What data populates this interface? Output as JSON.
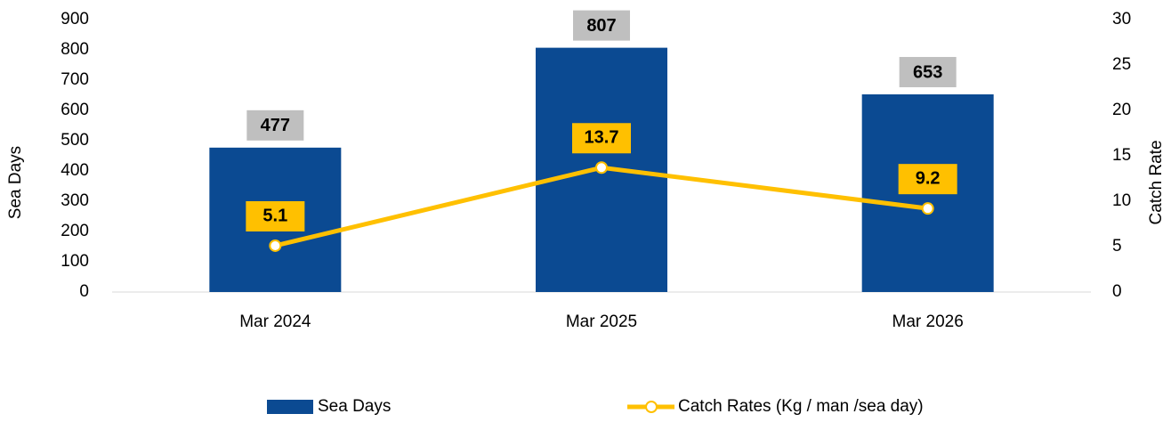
{
  "chart_data": {
    "type": "bar_line",
    "categories": [
      "Mar 2024",
      "Mar 2025",
      "Mar 2026"
    ],
    "series": [
      {
        "name": "Sea Days",
        "type": "bar",
        "color": "#0b4a92",
        "values": [
          477,
          807,
          653
        ]
      },
      {
        "name": "Catch Rates (Kg / man /sea day)",
        "type": "line",
        "axis": "y2",
        "color": "#ffc000",
        "values": [
          5.1,
          13.7,
          9.2
        ]
      }
    ],
    "ylabel": "Sea Days",
    "y2label": "Catch Rate",
    "ylim": [
      0,
      900
    ],
    "yticks": [
      0,
      100,
      200,
      300,
      400,
      500,
      600,
      700,
      800,
      900
    ],
    "y2lim": [
      0,
      30
    ],
    "y2ticks": [
      0,
      5,
      10,
      15,
      20,
      25,
      30
    ],
    "legend": "bottom"
  }
}
